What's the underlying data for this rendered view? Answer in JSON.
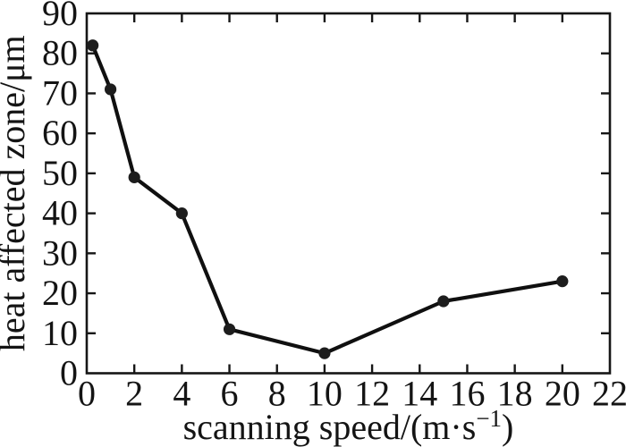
{
  "figure": {
    "description": "Scanned line chart of heat affected zone versus scanning speed"
  },
  "chart_data": {
    "type": "line",
    "title": "",
    "xlabel": "scanning speed/(m·s⁻¹)",
    "xlabel_parts": {
      "prefix": "scanning speed/(m·s",
      "superscript": "−1",
      "suffix": ")"
    },
    "ylabel": "heat affected zone/μm",
    "x": [
      0.25,
      1,
      2,
      4,
      6,
      10,
      15,
      20
    ],
    "y": [
      82,
      71,
      49,
      40,
      11,
      5,
      18,
      23
    ],
    "xlim": [
      0,
      22
    ],
    "ylim": [
      0,
      90
    ],
    "xticks": [
      0,
      2,
      4,
      6,
      8,
      10,
      12,
      14,
      16,
      18,
      20,
      22
    ],
    "yticks": [
      0,
      10,
      20,
      30,
      40,
      50,
      60,
      70,
      80,
      90
    ],
    "grid": false,
    "legend_position": "none",
    "marker": "circle",
    "colors": {
      "line": "#101010",
      "marker": "#1d1d1d",
      "axis": "#161616",
      "tick_label": "#141414",
      "background": "#ffffff"
    }
  }
}
